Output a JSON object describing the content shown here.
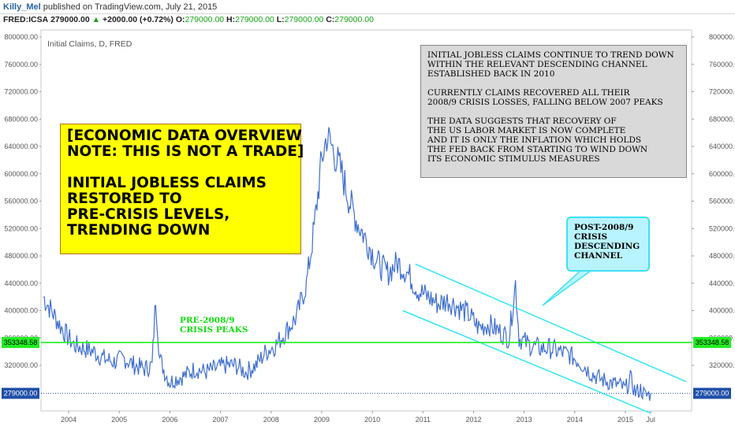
{
  "header": {
    "user": "Killy_Mel",
    "published": "published on TradingView.com, July 21, 2015",
    "symbol": "FRED:ICSA",
    "last": "279000.00",
    "change": "+2000.00 (+0.72%)",
    "o_label": "O:",
    "o_value": "279000.00",
    "h_label": "H:",
    "h_value": "279000.00",
    "l_label": "L:",
    "l_value": "279000.00",
    "c_label": "C:",
    "c_value": "279000.00"
  },
  "chart_title": "Initial Claims, D, FRED",
  "notes": {
    "yellow_l1": "[ECONOMIC DATA OVERVIEW",
    "yellow_l2": "NOTE: THIS IS NOT A TRADE]",
    "yellow_l3": "INITIAL JOBLESS CLAIMS",
    "yellow_l4": "RESTORED TO",
    "yellow_l5": "PRE-CRISIS LEVELS,",
    "yellow_l6": "TRENDING DOWN",
    "grey_l1": "INITIAL JOBLESS CLAIMS CONTINUE TO TREND DOWN",
    "grey_l2": "WITHIN THE RELEVANT DESCENDING CHANNEL",
    "grey_l3": "ESTABLISHED BACK IN 2010",
    "grey_l4": "CURRENTLY CLAIMS RECOVERED ALL THEIR",
    "grey_l5": "2008/9 CRISIS LOSSES, FALLING BELOW 2007 PEAKS",
    "grey_l6": "THE DATA SUGGESTS THAT RECOVERY OF",
    "grey_l7": "THE US LABOR MARKET IS NOW COMPLETE",
    "grey_l8": "AND IT IS ONLY THE INFLATION WHICH HOLDS",
    "grey_l9": "THE FED BACK FROM STARTING TO WIND DOWN",
    "grey_l10": "ITS ECONOMIC STIMULUS MEASURES",
    "callout_l1": "POST-2008/9",
    "callout_l2": "CRISIS",
    "callout_l3": "DESCENDING",
    "callout_l4": "CHANNEL",
    "peaks_l1": "PRE-2008/9",
    "peaks_l2": "CRISIS PEAKS"
  },
  "chart_data": {
    "type": "line",
    "series": [
      {
        "x": [
          2003.5,
          2003.7,
          2003.9,
          2004.1,
          2004.3,
          2004.5,
          2004.7,
          2004.9,
          2005.1,
          2005.3,
          2005.5,
          2005.65,
          2005.72,
          2005.8,
          2005.9,
          2006.0,
          2006.1,
          2006.3,
          2006.5,
          2006.7,
          2006.9,
          2007.1,
          2007.3,
          2007.5,
          2007.7,
          2007.9,
          2008.1,
          2008.3,
          2008.5,
          2008.7,
          2008.85,
          2009.0,
          2009.1,
          2009.2,
          2009.3,
          2009.4,
          2009.55,
          2009.7,
          2009.9,
          2010.1,
          2010.3,
          2010.5,
          2010.7,
          2010.9,
          2011.1,
          2011.3,
          2011.5,
          2011.7,
          2011.9,
          2012.1,
          2012.3,
          2012.5,
          2012.7,
          2012.83,
          2012.9,
          2013.1,
          2013.3,
          2013.5,
          2013.7,
          2013.9,
          2014.1,
          2014.3,
          2014.5,
          2014.7,
          2014.9,
          2015.0,
          2015.1,
          2015.2,
          2015.3,
          2015.4,
          2015.5
        ],
        "y": [
          420000,
          395000,
          370000,
          350000,
          345000,
          340000,
          330000,
          325000,
          330000,
          320000,
          315000,
          320000,
          420000,
          330000,
          310000,
          295000,
          300000,
          305000,
          315000,
          310000,
          315000,
          320000,
          320000,
          310000,
          320000,
          340000,
          350000,
          370000,
          390000,
          440000,
          520000,
          620000,
          655000,
          640000,
          620000,
          600000,
          560000,
          530000,
          500000,
          470000,
          455000,
          470000,
          455000,
          430000,
          420000,
          410000,
          415000,
          405000,
          395000,
          375000,
          380000,
          370000,
          360000,
          440000,
          360000,
          350000,
          345000,
          345000,
          340000,
          335000,
          325000,
          310000,
          300000,
          295000,
          290000,
          285000,
          300000,
          280000,
          285000,
          275000,
          279000
        ]
      }
    ],
    "ylim": [
      260000,
      800000
    ],
    "yticks": [
      "800000.00",
      "760000.00",
      "720000.00",
      "680000.00",
      "640000.00",
      "600000.00",
      "560000.00",
      "520000.00",
      "480000.00",
      "440000.00",
      "400000.00",
      "360000.00",
      "320000.00"
    ],
    "ytick_values": [
      800000,
      760000,
      720000,
      680000,
      640000,
      600000,
      560000,
      520000,
      480000,
      440000,
      400000,
      360000,
      320000
    ],
    "xticks": [
      "2004",
      "2005",
      "2006",
      "2007",
      "2008",
      "2009",
      "2010",
      "2011",
      "2012",
      "2013",
      "2014",
      "2015",
      "Jul"
    ],
    "xtick_values": [
      2004,
      2005,
      2006,
      2007,
      2008,
      2009,
      2010,
      2011,
      2012,
      2013,
      2014,
      2015,
      2015.5
    ],
    "level_peak": 353348.58,
    "level_peak_label": "353348.58",
    "level_last": 279000,
    "level_last_label": "279000.00",
    "channel_upper": [
      [
        2010.85,
        468000
      ],
      [
        2016.2,
        296000
      ]
    ],
    "channel_lower": [
      [
        2010.6,
        400000
      ],
      [
        2015.5,
        250000
      ]
    ],
    "colors": {
      "line": "#3f6fcf",
      "peak": "#22ee22",
      "channel": "#33e6f5",
      "last": "#1f4fa8"
    }
  }
}
